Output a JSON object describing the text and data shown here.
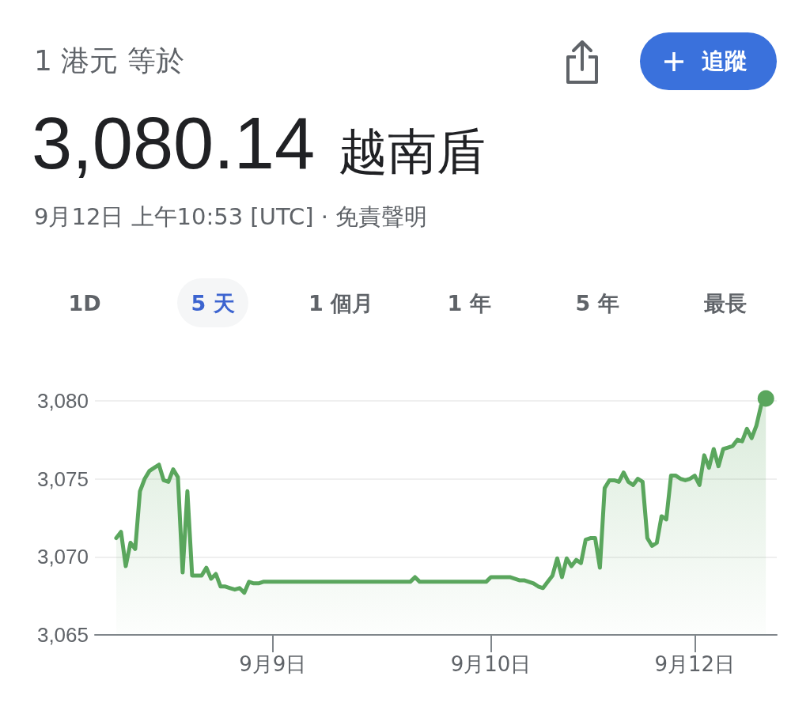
{
  "chart_data": {
    "type": "area",
    "title": "1 港元 等於",
    "subtitle": "3,080.14 越南盾",
    "annotations": [
      "9月12日 上午10:53 [UTC] · 免責聲明",
      "1D",
      "5 天",
      "1 個月",
      "1 年",
      "5 年",
      "最長",
      "追蹤"
    ],
    "categories": [
      null,
      null,
      null,
      null,
      null,
      null,
      null,
      null,
      null,
      null,
      null,
      null,
      null,
      null,
      null,
      null,
      null,
      null,
      null,
      null,
      null,
      null,
      null,
      null,
      null,
      null,
      null,
      null,
      null,
      null,
      null,
      null,
      null,
      "9月9日",
      null,
      null,
      null,
      null,
      null,
      null,
      null,
      null,
      null,
      null,
      null,
      null,
      null,
      null,
      null,
      null,
      null,
      null,
      null,
      null,
      null,
      null,
      null,
      null,
      null,
      null,
      null,
      null,
      null,
      null,
      null,
      null,
      null,
      null,
      null,
      null,
      null,
      null,
      null,
      null,
      null,
      null,
      null,
      null,
      null,
      "9月10日",
      null,
      null,
      null,
      null,
      null,
      null,
      null,
      null,
      null,
      null,
      null,
      null,
      null,
      null,
      null,
      null,
      null,
      null,
      null,
      null,
      null,
      null,
      null,
      null,
      null,
      null,
      null,
      null,
      null,
      null,
      null,
      null,
      null,
      null,
      null,
      null,
      null,
      null,
      null,
      null,
      null,
      null,
      "9月12日",
      null,
      null,
      null,
      null,
      null,
      null,
      null,
      null,
      null,
      null,
      null,
      null,
      null,
      null,
      null
    ],
    "series": [
      {
        "color": "#5aa65d",
        "values": [
          3071.2,
          3071.6,
          3069.4,
          3070.9,
          3070.5,
          3074.2,
          3075.0,
          3075.5,
          3075.7,
          3075.9,
          3074.9,
          3074.8,
          3075.6,
          3075.1,
          3069.0,
          3074.2,
          3068.8,
          3068.8,
          3068.8,
          3069.3,
          3068.6,
          3068.9,
          3068.1,
          3068.1,
          3068.0,
          3067.9,
          3068.0,
          3067.7,
          3068.4,
          3068.3,
          3068.3,
          3068.4,
          3068.4,
          3068.4,
          3068.4,
          3068.4,
          3068.4,
          3068.4,
          3068.4,
          3068.4,
          3068.4,
          3068.4,
          3068.4,
          3068.4,
          3068.4,
          3068.4,
          3068.4,
          3068.4,
          3068.4,
          3068.4,
          3068.4,
          3068.4,
          3068.4,
          3068.4,
          3068.4,
          3068.4,
          3068.4,
          3068.4,
          3068.4,
          3068.4,
          3068.4,
          3068.4,
          3068.4,
          3068.7,
          3068.4,
          3068.4,
          3068.4,
          3068.4,
          3068.4,
          3068.4,
          3068.4,
          3068.4,
          3068.4,
          3068.4,
          3068.4,
          3068.4,
          3068.4,
          3068.4,
          3068.4,
          3068.7,
          3068.7,
          3068.7,
          3068.7,
          3068.7,
          3068.6,
          3068.5,
          3068.5,
          3068.4,
          3068.3,
          3068.1,
          3068.0,
          3068.4,
          3068.8,
          3069.9,
          3068.7,
          3069.9,
          3069.4,
          3069.8,
          3069.6,
          3071.1,
          3071.2,
          3071.2,
          3069.3,
          3074.4,
          3074.9,
          3074.9,
          3074.8,
          3075.4,
          3074.8,
          3074.6,
          3075.0,
          3074.8,
          3071.2,
          3070.7,
          3070.9,
          3072.6,
          3072.4,
          3075.2,
          3075.2,
          3075.0,
          3074.9,
          3075.0,
          3075.2,
          3074.6,
          3076.5,
          3075.7,
          3076.9,
          3075.8,
          3076.9,
          3077.0,
          3077.1,
          3077.5,
          3077.4,
          3078.2,
          3077.6,
          3078.4,
          3079.7,
          3080.14
        ]
      },
      {
        "type": "scatter",
        "marker": "circle",
        "color": "#5aa65d",
        "values": [
          null,
          null,
          null,
          null,
          null,
          null,
          null,
          null,
          null,
          null,
          null,
          null,
          null,
          null,
          null,
          null,
          null,
          null,
          null,
          null,
          null,
          null,
          null,
          null,
          null,
          null,
          null,
          null,
          null,
          null,
          null,
          null,
          null,
          null,
          null,
          null,
          null,
          null,
          null,
          null,
          null,
          null,
          null,
          null,
          null,
          null,
          null,
          null,
          null,
          null,
          null,
          null,
          null,
          null,
          null,
          null,
          null,
          null,
          null,
          null,
          null,
          null,
          null,
          null,
          null,
          null,
          null,
          null,
          null,
          null,
          null,
          null,
          null,
          null,
          null,
          null,
          null,
          null,
          null,
          null,
          null,
          null,
          null,
          null,
          null,
          null,
          null,
          null,
          null,
          null,
          null,
          null,
          null,
          null,
          null,
          null,
          null,
          null,
          null,
          null,
          null,
          null,
          null,
          null,
          null,
          null,
          null,
          null,
          null,
          null,
          null,
          null,
          null,
          null,
          null,
          null,
          null,
          null,
          null,
          null,
          null,
          null,
          null,
          null,
          null,
          null,
          null,
          null,
          null,
          null,
          null,
          null,
          null,
          null,
          null,
          null,
          null,
          3080.14
        ]
      }
    ],
    "ylim": [
      3065,
      3080.14
    ],
    "yticks": [
      {
        "value": 3065,
        "label": "3,065"
      },
      {
        "value": 3070,
        "label": "3,070"
      },
      {
        "value": 3075,
        "label": "3,075"
      },
      {
        "value": 3080,
        "label": "3,080"
      }
    ],
    "grid": "y"
  }
}
